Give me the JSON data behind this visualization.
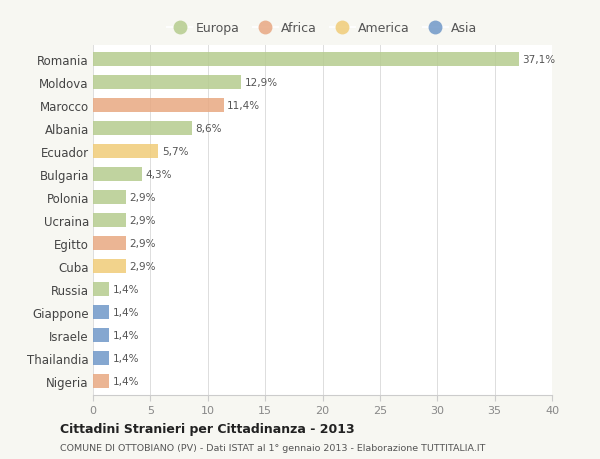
{
  "countries": [
    "Romania",
    "Moldova",
    "Marocco",
    "Albania",
    "Ecuador",
    "Bulgaria",
    "Polonia",
    "Ucraina",
    "Egitto",
    "Cuba",
    "Russia",
    "Giappone",
    "Israele",
    "Thailandia",
    "Nigeria"
  ],
  "values": [
    37.1,
    12.9,
    11.4,
    8.6,
    5.7,
    4.3,
    2.9,
    2.9,
    2.9,
    2.9,
    1.4,
    1.4,
    1.4,
    1.4,
    1.4
  ],
  "labels": [
    "37,1%",
    "12,9%",
    "11,4%",
    "8,6%",
    "5,7%",
    "4,3%",
    "2,9%",
    "2,9%",
    "2,9%",
    "2,9%",
    "1,4%",
    "1,4%",
    "1,4%",
    "1,4%",
    "1,4%"
  ],
  "continents": [
    "Europa",
    "Europa",
    "Africa",
    "Europa",
    "America",
    "Europa",
    "Europa",
    "Europa",
    "Africa",
    "America",
    "Europa",
    "Asia",
    "Asia",
    "Asia",
    "Africa"
  ],
  "colors": {
    "Europa": "#b5cc8e",
    "Africa": "#e8a882",
    "America": "#f0cc78",
    "Asia": "#7098c8"
  },
  "bg_color": "#f7f7f2",
  "title": "Cittadini Stranieri per Cittadinanza - 2013",
  "subtitle": "COMUNE DI OTTOBIANO (PV) - Dati ISTAT al 1° gennaio 2013 - Elaborazione TUTTITALIA.IT",
  "xlim": [
    0,
    40
  ],
  "xticks": [
    0,
    5,
    10,
    15,
    20,
    25,
    30,
    35,
    40
  ],
  "legend_order": [
    "Europa",
    "Africa",
    "America",
    "Asia"
  ]
}
